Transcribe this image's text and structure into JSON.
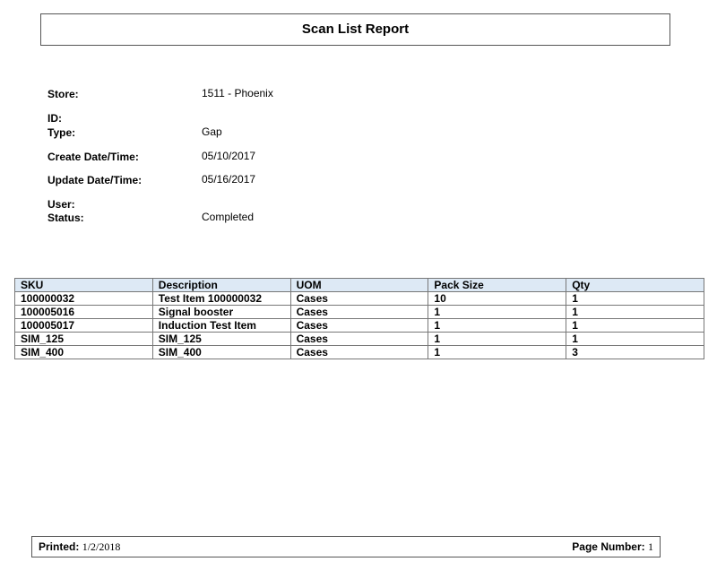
{
  "header": {
    "title": "Scan List Report"
  },
  "fields": [
    {
      "label": "Store:",
      "value": "1511 - Phoenix"
    },
    {
      "label": "ID:"
    },
    {
      "label": "Type:",
      "value": "Gap"
    },
    {
      "label": "Create Date/Time:",
      "value": "05/10/2017"
    },
    {
      "label": "Update Date/Time:",
      "value": "05/16/2017"
    },
    {
      "label": "User:"
    },
    {
      "label": "Status:",
      "value": "Completed"
    }
  ],
  "table": {
    "columns": [
      "SKU",
      "Description",
      "UOM",
      "Pack Size",
      "Qty"
    ],
    "rows": [
      [
        "100000032",
        "Test Item 100000032",
        "Cases",
        10,
        1
      ],
      [
        "100005016",
        "Signal booster",
        "Cases",
        1,
        1
      ],
      [
        "100005017",
        "Induction Test Item",
        "Cases",
        1,
        1
      ],
      [
        "SIM_125",
        "SIM_125",
        "Cases",
        1,
        1
      ],
      [
        "SIM_400",
        "SIM_400",
        "Cases",
        1,
        3
      ]
    ]
  },
  "footer": {
    "printed_label": "Printed:",
    "printed": "1/2/2018",
    "page_label": "Page Number:",
    "page": 1
  }
}
